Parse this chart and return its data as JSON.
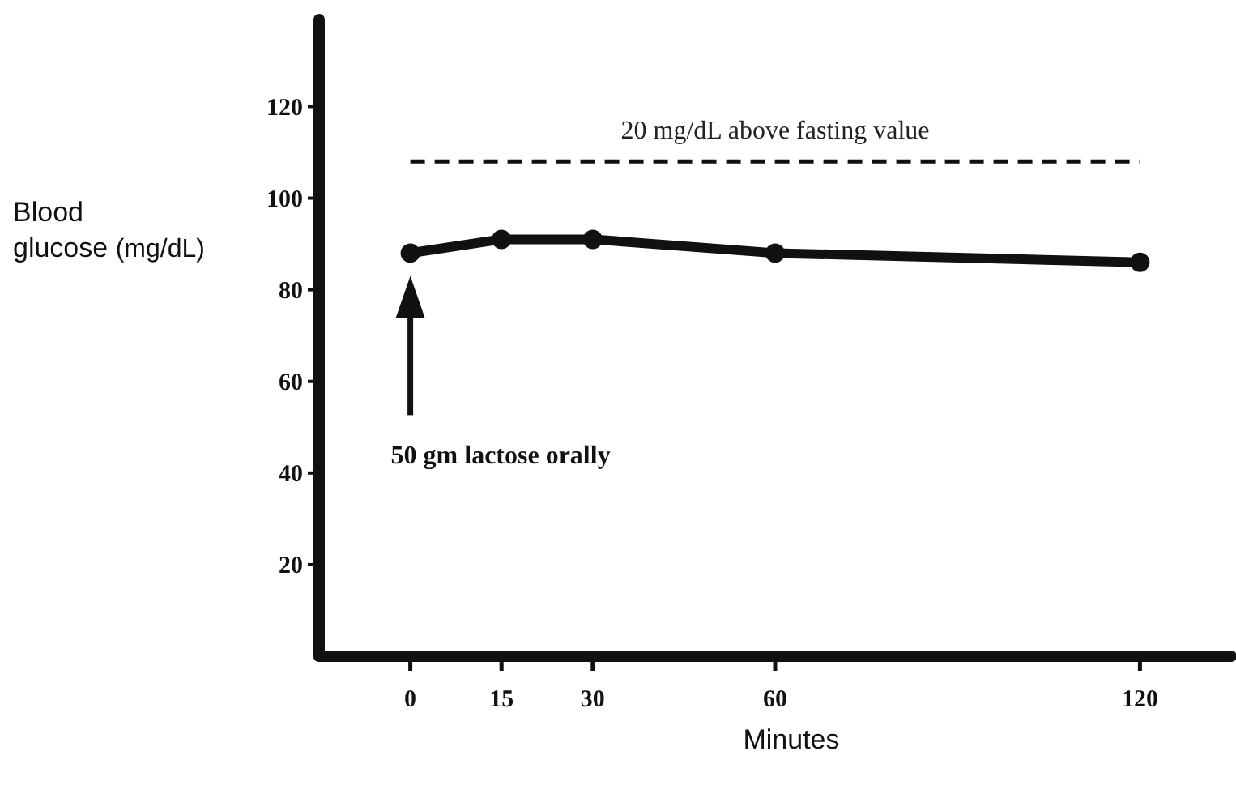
{
  "chart_data": {
    "type": "line",
    "xlabel": "Minutes",
    "ylabel": "Blood glucose (mg/dL)",
    "x": [
      0,
      15,
      30,
      60,
      120
    ],
    "series": [
      {
        "color": "#111111",
        "values": [
          88,
          91,
          91,
          88,
          86
        ]
      }
    ],
    "xlim": [
      -15,
      135
    ],
    "xticks": [
      0,
      15,
      30,
      60,
      120
    ],
    "ylim": [
      0,
      139
    ],
    "yticks": [
      20,
      40,
      60,
      80,
      100,
      120
    ],
    "ref_lines": [
      {
        "axis": "y",
        "value": 108,
        "label": "20 mg/dL above fasting value",
        "line_style": "dashed",
        "color": "#111111"
      }
    ],
    "annotations": [
      "50 gm lactose orally"
    ],
    "marker": "circle",
    "line_style": "solid"
  }
}
